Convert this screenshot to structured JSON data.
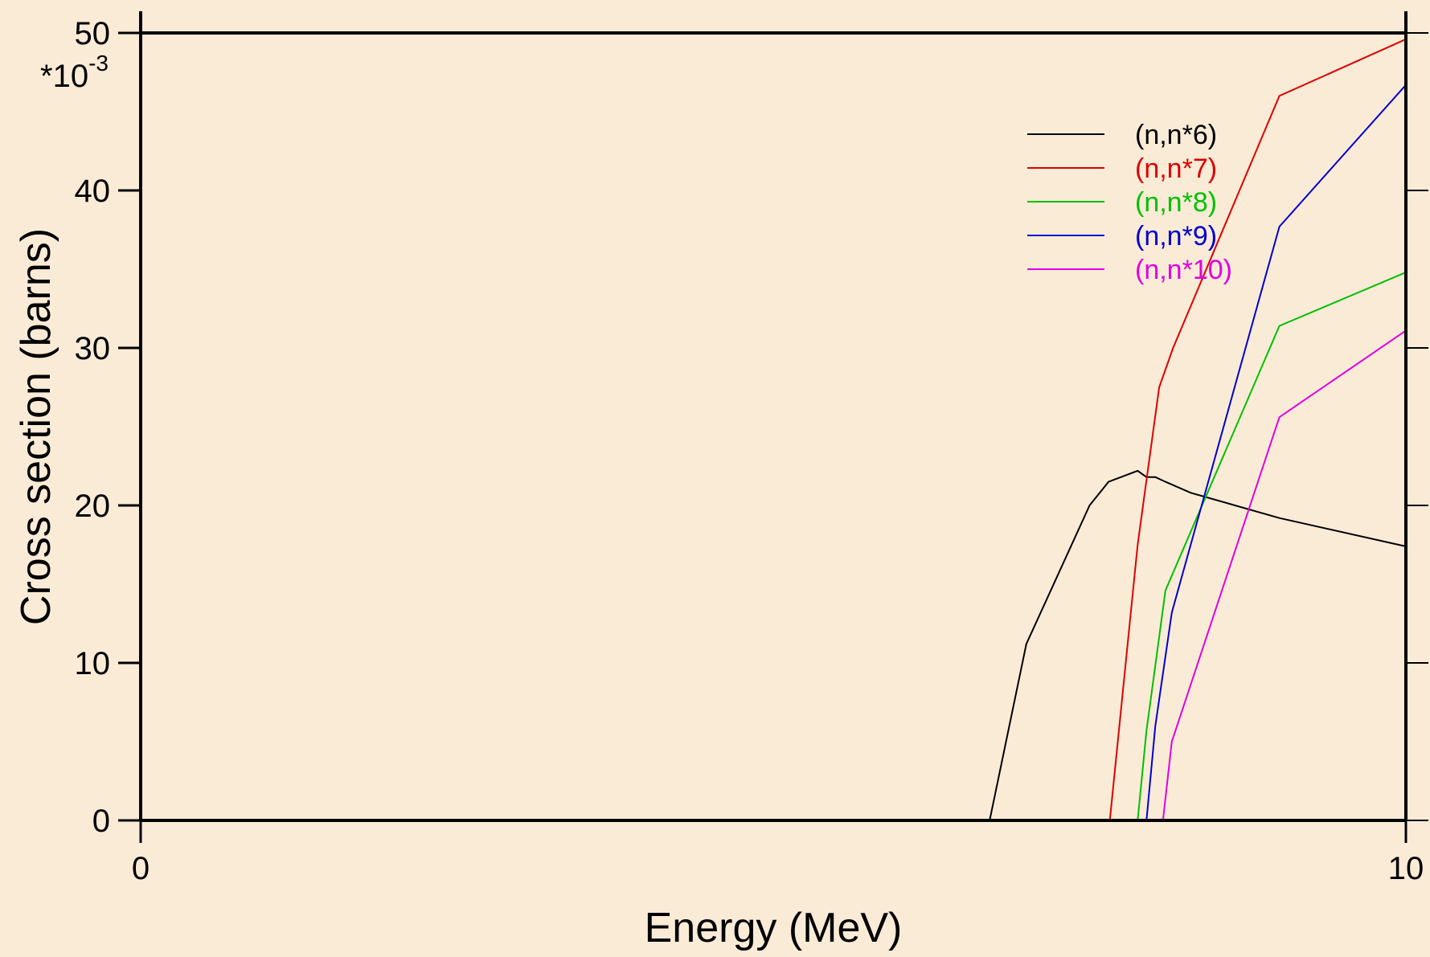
{
  "colors": {
    "page_background": "#faebd7",
    "plot_background": "#faebd7",
    "axis": "#000000"
  },
  "chart_data": {
    "type": "line",
    "title": "",
    "xlabel": "Energy (MeV)",
    "ylabel": "Cross section (barns)",
    "y_multiplier_label": "*10",
    "y_multiplier_exponent": "-3",
    "xlim": [
      0,
      10
    ],
    "ylim": [
      0,
      50
    ],
    "x_ticks": [
      0,
      10
    ],
    "x_tick_labels": [
      "0",
      "10"
    ],
    "y_ticks": [
      0,
      10,
      20,
      30,
      40,
      50
    ],
    "y_tick_labels": [
      "0",
      "10",
      "20",
      "30",
      "40",
      "50"
    ],
    "grid": false,
    "legend_position": "top-right",
    "series": [
      {
        "name": "(n,n*6)",
        "color": "#000000",
        "x": [
          6.71,
          7.0,
          7.5,
          7.65,
          7.88,
          7.95,
          8.02,
          8.1,
          8.3,
          9.0,
          10.0
        ],
        "y": [
          0,
          11.2,
          20.0,
          21.5,
          22.2,
          21.8,
          21.8,
          21.5,
          20.8,
          19.2,
          17.4
        ]
      },
      {
        "name": "(n,n*7)",
        "color": "#dd0000",
        "x": [
          7.66,
          7.88,
          8.05,
          8.16,
          9.0,
          10.0
        ],
        "y": [
          0,
          17.5,
          27.5,
          30.0,
          46.0,
          49.6
        ]
      },
      {
        "name": "(n,n*8)",
        "color": "#00c000",
        "x": [
          7.88,
          7.95,
          8.1,
          9.0,
          10.0
        ],
        "y": [
          0,
          5.7,
          14.6,
          31.4,
          34.8
        ]
      },
      {
        "name": "(n,n*9)",
        "color": "#0000d0",
        "x": [
          7.95,
          8.02,
          8.15,
          9.0,
          10.0
        ],
        "y": [
          0,
          6.0,
          13.2,
          37.7,
          46.7
        ]
      },
      {
        "name": "(n,n*10)",
        "color": "#e000e0",
        "x": [
          8.08,
          8.15,
          9.0,
          10.0
        ],
        "y": [
          0,
          5.0,
          25.6,
          31.1
        ]
      }
    ]
  }
}
